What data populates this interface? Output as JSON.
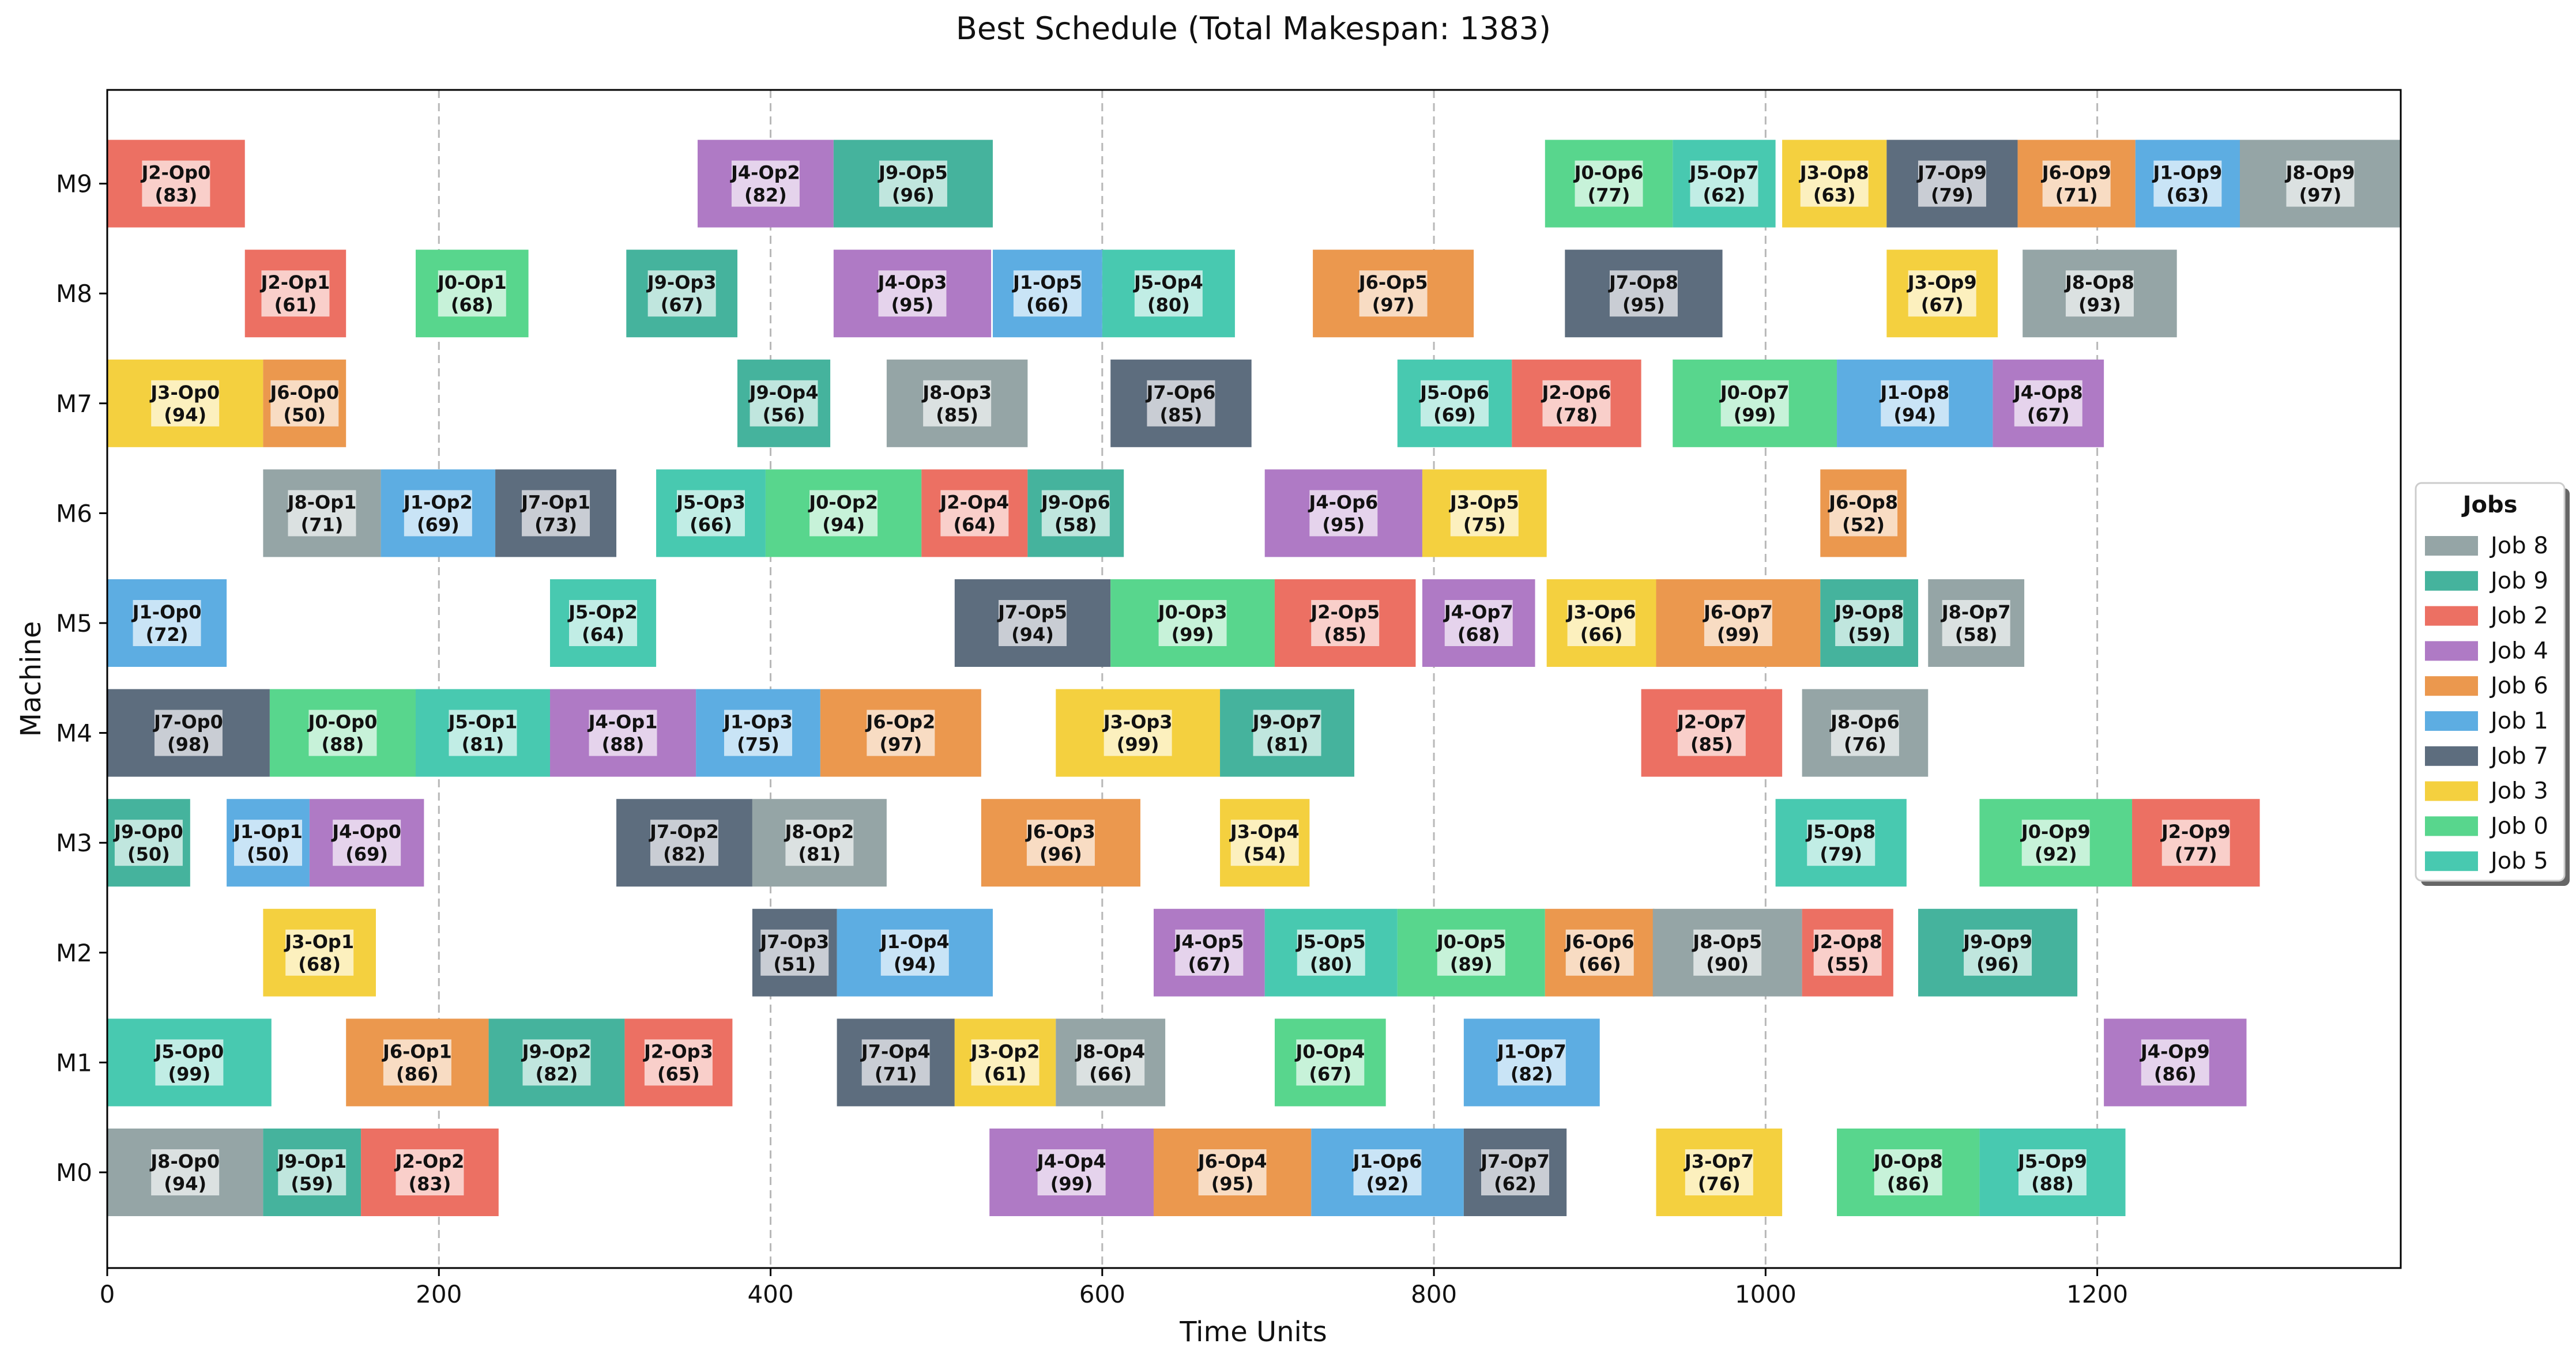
{
  "chart_data": {
    "type": "gantt",
    "title": "Best Schedule (Total Makespan: 1383)",
    "xlabel": "Time Units",
    "ylabel": "Machine",
    "xlim": [
      0,
      1383
    ],
    "x_ticks": [
      0,
      200,
      400,
      600,
      800,
      1000,
      1200
    ],
    "machines": [
      "M0",
      "M1",
      "M2",
      "M3",
      "M4",
      "M5",
      "M6",
      "M7",
      "M8",
      "M9"
    ],
    "grid": "vertical dashed at x ticks",
    "legend": {
      "title": "Jobs",
      "placement": "right, outside axes",
      "entries": [
        {
          "label": "Job 8",
          "job": 8
        },
        {
          "label": "Job 9",
          "job": 9
        },
        {
          "label": "Job 2",
          "job": 2
        },
        {
          "label": "Job 4",
          "job": 4
        },
        {
          "label": "Job 6",
          "job": 6
        },
        {
          "label": "Job 1",
          "job": 1
        },
        {
          "label": "Job 7",
          "job": 7
        },
        {
          "label": "Job 3",
          "job": 3
        },
        {
          "label": "Job 0",
          "job": 0
        },
        {
          "label": "Job 5",
          "job": 5
        }
      ]
    },
    "job_colors": {
      "0": "#58d68d",
      "1": "#5dade2",
      "2": "#ec7063",
      "3": "#f4d03f",
      "4": "#af7ac5",
      "5": "#48c9b0",
      "6": "#eb984e",
      "7": "#5d6d7e",
      "8": "#95a5a6",
      "9": "#45b39d"
    },
    "operations": [
      {
        "machine": "M9",
        "job": 2,
        "label": "J2-Op0",
        "duration": "(83)",
        "start": 0,
        "end": 83
      },
      {
        "machine": "M9",
        "job": 4,
        "label": "J4-Op2",
        "duration": "(82)",
        "start": 356,
        "end": 438
      },
      {
        "machine": "M9",
        "job": 9,
        "label": "J9-Op5",
        "duration": "(96)",
        "start": 438,
        "end": 534
      },
      {
        "machine": "M9",
        "job": 0,
        "label": "J0-Op6",
        "duration": "(77)",
        "start": 867,
        "end": 944
      },
      {
        "machine": "M9",
        "job": 5,
        "label": "J5-Op7",
        "duration": "(62)",
        "start": 944,
        "end": 1006
      },
      {
        "machine": "M9",
        "job": 3,
        "label": "J3-Op8",
        "duration": "(63)",
        "start": 1010,
        "end": 1073
      },
      {
        "machine": "M9",
        "job": 7,
        "label": "J7-Op9",
        "duration": "(79)",
        "start": 1073,
        "end": 1152
      },
      {
        "machine": "M9",
        "job": 6,
        "label": "J6-Op9",
        "duration": "(71)",
        "start": 1152,
        "end": 1223
      },
      {
        "machine": "M9",
        "job": 1,
        "label": "J1-Op9",
        "duration": "(63)",
        "start": 1223,
        "end": 1286
      },
      {
        "machine": "M9",
        "job": 8,
        "label": "J8-Op9",
        "duration": "(97)",
        "start": 1286,
        "end": 1383
      },
      {
        "machine": "M8",
        "job": 2,
        "label": "J2-Op1",
        "duration": "(61)",
        "start": 83,
        "end": 144
      },
      {
        "machine": "M8",
        "job": 0,
        "label": "J0-Op1",
        "duration": "(68)",
        "start": 186,
        "end": 254
      },
      {
        "machine": "M8",
        "job": 9,
        "label": "J9-Op3",
        "duration": "(67)",
        "start": 313,
        "end": 380
      },
      {
        "machine": "M8",
        "job": 4,
        "label": "J4-Op3",
        "duration": "(95)",
        "start": 438,
        "end": 533
      },
      {
        "machine": "M8",
        "job": 1,
        "label": "J1-Op5",
        "duration": "(66)",
        "start": 534,
        "end": 600
      },
      {
        "machine": "M8",
        "job": 5,
        "label": "J5-Op4",
        "duration": "(80)",
        "start": 600,
        "end": 680
      },
      {
        "machine": "M8",
        "job": 6,
        "label": "J6-Op5",
        "duration": "(97)",
        "start": 727,
        "end": 824
      },
      {
        "machine": "M8",
        "job": 7,
        "label": "J7-Op8",
        "duration": "(95)",
        "start": 879,
        "end": 974
      },
      {
        "machine": "M8",
        "job": 3,
        "label": "J3-Op9",
        "duration": "(67)",
        "start": 1073,
        "end": 1140
      },
      {
        "machine": "M8",
        "job": 8,
        "label": "J8-Op8",
        "duration": "(93)",
        "start": 1155,
        "end": 1248
      },
      {
        "machine": "M7",
        "job": 3,
        "label": "J3-Op0",
        "duration": "(94)",
        "start": 0,
        "end": 94
      },
      {
        "machine": "M7",
        "job": 6,
        "label": "J6-Op0",
        "duration": "(50)",
        "start": 94,
        "end": 144
      },
      {
        "machine": "M7",
        "job": 9,
        "label": "J9-Op4",
        "duration": "(56)",
        "start": 380,
        "end": 436
      },
      {
        "machine": "M7",
        "job": 8,
        "label": "J8-Op3",
        "duration": "(85)",
        "start": 470,
        "end": 555
      },
      {
        "machine": "M7",
        "job": 7,
        "label": "J7-Op6",
        "duration": "(85)",
        "start": 605,
        "end": 690
      },
      {
        "machine": "M7",
        "job": 5,
        "label": "J5-Op6",
        "duration": "(69)",
        "start": 778,
        "end": 847
      },
      {
        "machine": "M7",
        "job": 2,
        "label": "J2-Op6",
        "duration": "(78)",
        "start": 847,
        "end": 925
      },
      {
        "machine": "M7",
        "job": 0,
        "label": "J0-Op7",
        "duration": "(99)",
        "start": 944,
        "end": 1043
      },
      {
        "machine": "M7",
        "job": 1,
        "label": "J1-Op8",
        "duration": "(94)",
        "start": 1043,
        "end": 1137
      },
      {
        "machine": "M7",
        "job": 4,
        "label": "J4-Op8",
        "duration": "(67)",
        "start": 1137,
        "end": 1204
      },
      {
        "machine": "M6",
        "job": 8,
        "label": "J8-Op1",
        "duration": "(71)",
        "start": 94,
        "end": 165
      },
      {
        "machine": "M6",
        "job": 1,
        "label": "J1-Op2",
        "duration": "(69)",
        "start": 165,
        "end": 234
      },
      {
        "machine": "M6",
        "job": 7,
        "label": "J7-Op1",
        "duration": "(73)",
        "start": 234,
        "end": 307
      },
      {
        "machine": "M6",
        "job": 5,
        "label": "J5-Op3",
        "duration": "(66)",
        "start": 331,
        "end": 397
      },
      {
        "machine": "M6",
        "job": 0,
        "label": "J0-Op2",
        "duration": "(94)",
        "start": 397,
        "end": 491
      },
      {
        "machine": "M6",
        "job": 2,
        "label": "J2-Op4",
        "duration": "(64)",
        "start": 491,
        "end": 555
      },
      {
        "machine": "M6",
        "job": 9,
        "label": "J9-Op6",
        "duration": "(58)",
        "start": 555,
        "end": 613
      },
      {
        "machine": "M6",
        "job": 4,
        "label": "J4-Op6",
        "duration": "(95)",
        "start": 698,
        "end": 793
      },
      {
        "machine": "M6",
        "job": 3,
        "label": "J3-Op5",
        "duration": "(75)",
        "start": 793,
        "end": 868
      },
      {
        "machine": "M6",
        "job": 6,
        "label": "J6-Op8",
        "duration": "(52)",
        "start": 1033,
        "end": 1085
      },
      {
        "machine": "M5",
        "job": 1,
        "label": "J1-Op0",
        "duration": "(72)",
        "start": 0,
        "end": 72
      },
      {
        "machine": "M5",
        "job": 5,
        "label": "J5-Op2",
        "duration": "(64)",
        "start": 267,
        "end": 331
      },
      {
        "machine": "M5",
        "job": 7,
        "label": "J7-Op5",
        "duration": "(94)",
        "start": 511,
        "end": 605
      },
      {
        "machine": "M5",
        "job": 0,
        "label": "J0-Op3",
        "duration": "(99)",
        "start": 605,
        "end": 704
      },
      {
        "machine": "M5",
        "job": 2,
        "label": "J2-Op5",
        "duration": "(85)",
        "start": 704,
        "end": 789
      },
      {
        "machine": "M5",
        "job": 4,
        "label": "J4-Op7",
        "duration": "(68)",
        "start": 793,
        "end": 861
      },
      {
        "machine": "M5",
        "job": 3,
        "label": "J3-Op6",
        "duration": "(66)",
        "start": 868,
        "end": 934
      },
      {
        "machine": "M5",
        "job": 6,
        "label": "J6-Op7",
        "duration": "(99)",
        "start": 934,
        "end": 1033
      },
      {
        "machine": "M5",
        "job": 9,
        "label": "J9-Op8",
        "duration": "(59)",
        "start": 1033,
        "end": 1092
      },
      {
        "machine": "M5",
        "job": 8,
        "label": "J8-Op7",
        "duration": "(58)",
        "start": 1098,
        "end": 1156
      },
      {
        "machine": "M4",
        "job": 7,
        "label": "J7-Op0",
        "duration": "(98)",
        "start": 0,
        "end": 98
      },
      {
        "machine": "M4",
        "job": 0,
        "label": "J0-Op0",
        "duration": "(88)",
        "start": 98,
        "end": 186
      },
      {
        "machine": "M4",
        "job": 5,
        "label": "J5-Op1",
        "duration": "(81)",
        "start": 186,
        "end": 267
      },
      {
        "machine": "M4",
        "job": 4,
        "label": "J4-Op1",
        "duration": "(88)",
        "start": 267,
        "end": 355
      },
      {
        "machine": "M4",
        "job": 1,
        "label": "J1-Op3",
        "duration": "(75)",
        "start": 355,
        "end": 430
      },
      {
        "machine": "M4",
        "job": 6,
        "label": "J6-Op2",
        "duration": "(97)",
        "start": 430,
        "end": 527
      },
      {
        "machine": "M4",
        "job": 3,
        "label": "J3-Op3",
        "duration": "(99)",
        "start": 572,
        "end": 671
      },
      {
        "machine": "M4",
        "job": 9,
        "label": "J9-Op7",
        "duration": "(81)",
        "start": 671,
        "end": 752
      },
      {
        "machine": "M4",
        "job": 2,
        "label": "J2-Op7",
        "duration": "(85)",
        "start": 925,
        "end": 1010
      },
      {
        "machine": "M4",
        "job": 8,
        "label": "J8-Op6",
        "duration": "(76)",
        "start": 1022,
        "end": 1098
      },
      {
        "machine": "M3",
        "job": 9,
        "label": "J9-Op0",
        "duration": "(50)",
        "start": 0,
        "end": 50
      },
      {
        "machine": "M3",
        "job": 1,
        "label": "J1-Op1",
        "duration": "(50)",
        "start": 72,
        "end": 122
      },
      {
        "machine": "M3",
        "job": 4,
        "label": "J4-Op0",
        "duration": "(69)",
        "start": 122,
        "end": 191
      },
      {
        "machine": "M3",
        "job": 7,
        "label": "J7-Op2",
        "duration": "(82)",
        "start": 307,
        "end": 389
      },
      {
        "machine": "M3",
        "job": 8,
        "label": "J8-Op2",
        "duration": "(81)",
        "start": 389,
        "end": 470
      },
      {
        "machine": "M3",
        "job": 6,
        "label": "J6-Op3",
        "duration": "(96)",
        "start": 527,
        "end": 623
      },
      {
        "machine": "M3",
        "job": 3,
        "label": "J3-Op4",
        "duration": "(54)",
        "start": 671,
        "end": 725
      },
      {
        "machine": "M3",
        "job": 5,
        "label": "J5-Op8",
        "duration": "(79)",
        "start": 1006,
        "end": 1085
      },
      {
        "machine": "M3",
        "job": 0,
        "label": "J0-Op9",
        "duration": "(92)",
        "start": 1129,
        "end": 1221
      },
      {
        "machine": "M3",
        "job": 2,
        "label": "J2-Op9",
        "duration": "(77)",
        "start": 1221,
        "end": 1298
      },
      {
        "machine": "M2",
        "job": 3,
        "label": "J3-Op1",
        "duration": "(68)",
        "start": 94,
        "end": 162
      },
      {
        "machine": "M2",
        "job": 7,
        "label": "J7-Op3",
        "duration": "(51)",
        "start": 389,
        "end": 440
      },
      {
        "machine": "M2",
        "job": 1,
        "label": "J1-Op4",
        "duration": "(94)",
        "start": 440,
        "end": 534
      },
      {
        "machine": "M2",
        "job": 4,
        "label": "J4-Op5",
        "duration": "(67)",
        "start": 631,
        "end": 698
      },
      {
        "machine": "M2",
        "job": 5,
        "label": "J5-Op5",
        "duration": "(80)",
        "start": 698,
        "end": 778
      },
      {
        "machine": "M2",
        "job": 0,
        "label": "J0-Op5",
        "duration": "(89)",
        "start": 778,
        "end": 867
      },
      {
        "machine": "M2",
        "job": 6,
        "label": "J6-Op6",
        "duration": "(66)",
        "start": 867,
        "end": 933
      },
      {
        "machine": "M2",
        "job": 8,
        "label": "J8-Op5",
        "duration": "(90)",
        "start": 932,
        "end": 1022
      },
      {
        "machine": "M2",
        "job": 2,
        "label": "J2-Op8",
        "duration": "(55)",
        "start": 1022,
        "end": 1077
      },
      {
        "machine": "M2",
        "job": 9,
        "label": "J9-Op9",
        "duration": "(96)",
        "start": 1092,
        "end": 1188
      },
      {
        "machine": "M1",
        "job": 5,
        "label": "J5-Op0",
        "duration": "(99)",
        "start": 0,
        "end": 99
      },
      {
        "machine": "M1",
        "job": 6,
        "label": "J6-Op1",
        "duration": "(86)",
        "start": 144,
        "end": 230
      },
      {
        "machine": "M1",
        "job": 9,
        "label": "J9-Op2",
        "duration": "(82)",
        "start": 230,
        "end": 312
      },
      {
        "machine": "M1",
        "job": 2,
        "label": "J2-Op3",
        "duration": "(65)",
        "start": 312,
        "end": 377
      },
      {
        "machine": "M1",
        "job": 7,
        "label": "J7-Op4",
        "duration": "(71)",
        "start": 440,
        "end": 511
      },
      {
        "machine": "M1",
        "job": 3,
        "label": "J3-Op2",
        "duration": "(61)",
        "start": 511,
        "end": 572
      },
      {
        "machine": "M1",
        "job": 8,
        "label": "J8-Op4",
        "duration": "(66)",
        "start": 572,
        "end": 638
      },
      {
        "machine": "M1",
        "job": 0,
        "label": "J0-Op4",
        "duration": "(67)",
        "start": 704,
        "end": 771
      },
      {
        "machine": "M1",
        "job": 1,
        "label": "J1-Op7",
        "duration": "(82)",
        "start": 818,
        "end": 900
      },
      {
        "machine": "M1",
        "job": 4,
        "label": "J4-Op9",
        "duration": "(86)",
        "start": 1204,
        "end": 1290
      },
      {
        "machine": "M0",
        "job": 8,
        "label": "J8-Op0",
        "duration": "(94)",
        "start": 0,
        "end": 94
      },
      {
        "machine": "M0",
        "job": 9,
        "label": "J9-Op1",
        "duration": "(59)",
        "start": 94,
        "end": 153
      },
      {
        "machine": "M0",
        "job": 2,
        "label": "J2-Op2",
        "duration": "(83)",
        "start": 153,
        "end": 236
      },
      {
        "machine": "M0",
        "job": 4,
        "label": "J4-Op4",
        "duration": "(99)",
        "start": 532,
        "end": 631
      },
      {
        "machine": "M0",
        "job": 6,
        "label": "J6-Op4",
        "duration": "(95)",
        "start": 631,
        "end": 726
      },
      {
        "machine": "M0",
        "job": 1,
        "label": "J1-Op6",
        "duration": "(92)",
        "start": 726,
        "end": 818
      },
      {
        "machine": "M0",
        "job": 7,
        "label": "J7-Op7",
        "duration": "(62)",
        "start": 818,
        "end": 880
      },
      {
        "machine": "M0",
        "job": 3,
        "label": "J3-Op7",
        "duration": "(76)",
        "start": 934,
        "end": 1010
      },
      {
        "machine": "M0",
        "job": 0,
        "label": "J0-Op8",
        "duration": "(86)",
        "start": 1043,
        "end": 1129
      },
      {
        "machine": "M0",
        "job": 5,
        "label": "J5-Op9",
        "duration": "(88)",
        "start": 1129,
        "end": 1217
      }
    ]
  }
}
